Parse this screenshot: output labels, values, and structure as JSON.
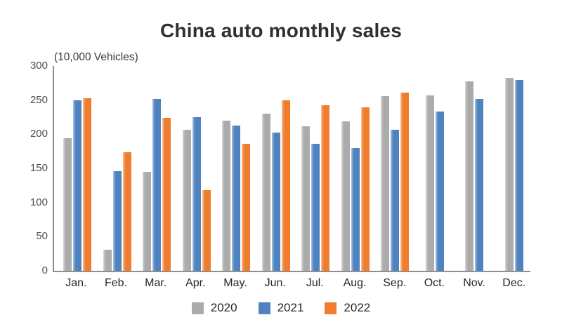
{
  "title": "China auto monthly sales",
  "unit_label": "(10,000 Vehicles)",
  "colors": {
    "series_2020": "#ababab",
    "series_2021": "#4e83c0",
    "series_2022": "#f07d2e",
    "axis_line": "#8f8f8f",
    "tick_label": "#4d4d4d",
    "title_text": "#332e2c"
  },
  "chart_data": {
    "type": "bar",
    "title": "China auto monthly sales",
    "xlabel": "",
    "ylabel": "(10,000 Vehicles)",
    "ylim": [
      0,
      300
    ],
    "yticks": [
      0,
      50,
      100,
      150,
      200,
      250,
      300
    ],
    "grid": false,
    "legend_position": "bottom",
    "categories": [
      "Jan.",
      "Feb.",
      "Mar.",
      "Apr.",
      "May.",
      "Jun.",
      "Jul.",
      "Aug.",
      "Sep.",
      "Oct.",
      "Nov.",
      "Dec."
    ],
    "series": [
      {
        "name": "2020",
        "color": "#ababab",
        "values": [
          194,
          31,
          145,
          207,
          220,
          230,
          212,
          219,
          256,
          257,
          277,
          283
        ]
      },
      {
        "name": "2021",
        "color": "#4e83c0",
        "values": [
          250,
          146,
          252,
          225,
          213,
          202,
          186,
          180,
          207,
          233,
          252,
          279
        ]
      },
      {
        "name": "2022",
        "color": "#f07d2e",
        "values": [
          253,
          174,
          224,
          118,
          186,
          250,
          242,
          239,
          261,
          null,
          null,
          null
        ]
      }
    ]
  },
  "legend": {
    "items": [
      {
        "label": "2020",
        "color": "#ababab"
      },
      {
        "label": "2021",
        "color": "#4e83c0"
      },
      {
        "label": "2022",
        "color": "#f07d2e"
      }
    ]
  }
}
